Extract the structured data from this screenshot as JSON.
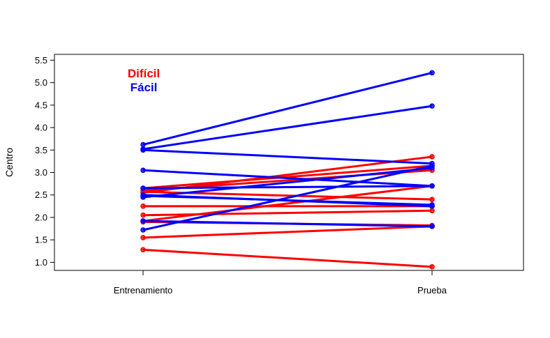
{
  "chart_data": {
    "type": "line",
    "title": "",
    "xlabel": "",
    "ylabel": "Centro",
    "categories": [
      "Entrenamiento",
      "Prueba"
    ],
    "ylim": [
      0.82,
      5.63
    ],
    "yticks": [
      "1.0",
      "1.5",
      "2.0",
      "2.5",
      "3.0",
      "3.5",
      "4.0",
      "4.5",
      "5.0",
      "5.5"
    ],
    "grid": false,
    "legend": {
      "placement": "top-left",
      "entries": [
        {
          "label": "Difícil",
          "color": "#ff0000"
        },
        {
          "label": "Fácil",
          "color": "#0000ff"
        }
      ]
    },
    "groups": [
      {
        "color": "#ff0000",
        "pairs": [
          [
            1.28,
            0.9
          ],
          [
            1.55,
            1.8
          ],
          [
            1.9,
            1.82
          ],
          [
            1.92,
            2.7
          ],
          [
            2.05,
            2.15
          ],
          [
            2.25,
            2.25
          ],
          [
            2.55,
            3.35
          ],
          [
            2.57,
            2.4
          ],
          [
            2.6,
            3.05
          ],
          [
            2.65,
            3.15
          ]
        ]
      },
      {
        "color": "#0000ff",
        "pairs": [
          [
            1.72,
            3.15
          ],
          [
            1.92,
            1.8
          ],
          [
            2.45,
            3.1
          ],
          [
            2.48,
            2.28
          ],
          [
            2.5,
            2.25
          ],
          [
            2.65,
            2.7
          ],
          [
            3.05,
            2.7
          ],
          [
            3.5,
            3.2
          ],
          [
            3.62,
            5.22
          ],
          [
            3.52,
            4.48
          ]
        ]
      }
    ]
  }
}
